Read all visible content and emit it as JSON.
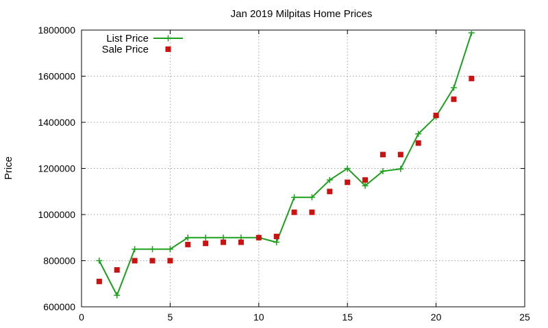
{
  "chart_data": {
    "type": "line",
    "title": "Jan 2019 Milpitas Home Prices",
    "xlabel": "",
    "ylabel": "Price",
    "xlim": [
      0,
      25
    ],
    "ylim": [
      600000,
      1800000
    ],
    "xticks": [
      0,
      5,
      10,
      15,
      20,
      25
    ],
    "yticks": [
      600000,
      800000,
      1000000,
      1200000,
      1400000,
      1600000,
      1800000
    ],
    "grid": true,
    "legend_position": "top-left",
    "series": [
      {
        "name": "List Price",
        "style": "linespoints",
        "marker": "plus",
        "color": "#1aa01a",
        "x": [
          1,
          2,
          3,
          4,
          5,
          6,
          7,
          8,
          9,
          10,
          11,
          12,
          13,
          14,
          15,
          16,
          17,
          18,
          19,
          20,
          21,
          22
        ],
        "y": [
          800000,
          650000,
          850000,
          850000,
          850000,
          900000,
          900000,
          900000,
          900000,
          900000,
          880000,
          1075000,
          1075000,
          1150000,
          1200000,
          1125000,
          1188000,
          1198000,
          1350000,
          1425000,
          1550000,
          1788000
        ]
      },
      {
        "name": "Sale Price",
        "style": "points",
        "marker": "square",
        "color": "#cc1111",
        "x": [
          1,
          2,
          3,
          4,
          5,
          6,
          7,
          8,
          9,
          10,
          11,
          12,
          13,
          14,
          15,
          16,
          17,
          18,
          19,
          20,
          21,
          22
        ],
        "y": [
          710000,
          760000,
          800000,
          800000,
          800000,
          870000,
          875000,
          880000,
          880000,
          900000,
          905000,
          1010000,
          1010000,
          1100000,
          1140000,
          1150000,
          1260000,
          1260000,
          1310000,
          1430000,
          1500000,
          1590000
        ]
      }
    ]
  }
}
